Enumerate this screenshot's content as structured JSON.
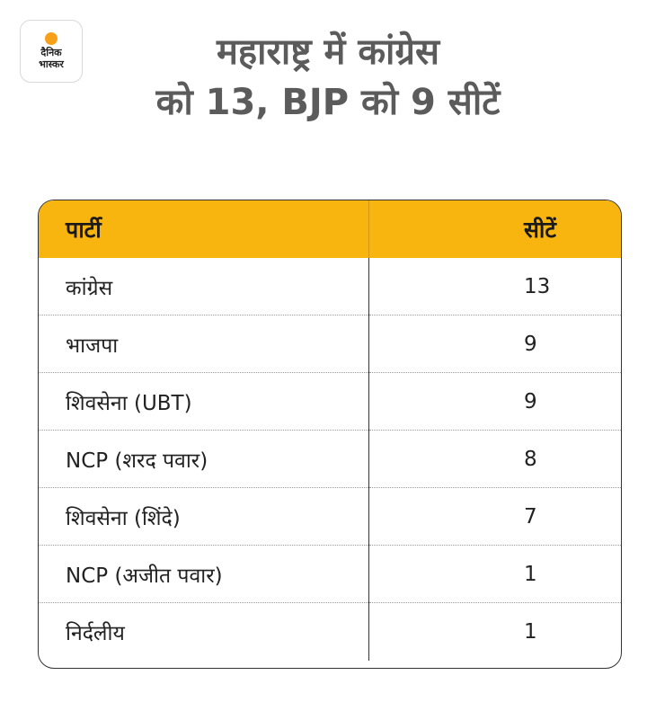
{
  "logo": {
    "line1": "दैनिक",
    "line2": "भास्कर"
  },
  "headline": {
    "line1": "महाराष्ट्र में कांग्रेस",
    "line2": "को 13, BJP को 9 सीटें"
  },
  "table": {
    "headers": {
      "party": "पार्टी",
      "seats": "सीटें"
    },
    "rows": [
      {
        "party": "कांग्रेस",
        "seats": "13"
      },
      {
        "party": "भाजपा",
        "seats": "9"
      },
      {
        "party": "शिवसेना (UBT)",
        "seats": "9"
      },
      {
        "party": "NCP (शरद पवार)",
        "seats": "8"
      },
      {
        "party": "शिवसेना (शिंदे)",
        "seats": "7"
      },
      {
        "party": "NCP (अजीत पवार)",
        "seats": "1"
      },
      {
        "party": "निर्दलीय",
        "seats": "1"
      }
    ]
  },
  "colors": {
    "header_background": "#f9b50f",
    "headline_text": "#5b5b5b",
    "logo_accent": "#f7a11a"
  }
}
